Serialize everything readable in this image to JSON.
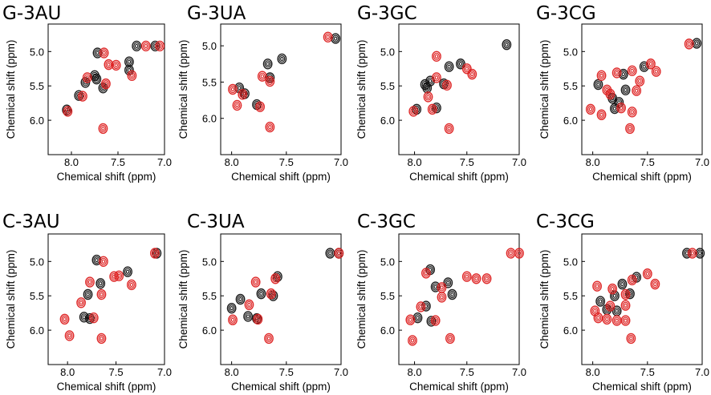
{
  "figure": {
    "row_titles": [
      "G-3AU",
      "G-3UA",
      "G-3GC",
      "G-3CG",
      "C-3AU",
      "C-3UA",
      "C-3GC",
      "C-3CG"
    ]
  },
  "chart_data": [
    {
      "type": "scatter",
      "title": "G-3AU",
      "xlabel": "Chemical shift (ppm)",
      "ylabel": "Chemical shift (ppm)",
      "xlim": [
        8.25,
        7.0
      ],
      "ylim": [
        4.6,
        6.5
      ],
      "xticks": [
        "8.0",
        "7.5",
        "7.0"
      ],
      "yticks": [
        "5.0",
        "5.5",
        "6.0"
      ],
      "series": [
        {
          "name": "black",
          "color": "#111111",
          "points": [
            [
              7.72,
              5.02
            ],
            [
              7.75,
              5.35
            ],
            [
              7.73,
              5.4
            ],
            [
              7.85,
              5.45
            ],
            [
              7.92,
              5.64
            ],
            [
              8.05,
              5.85
            ],
            [
              7.38,
              5.15
            ],
            [
              7.38,
              5.27
            ],
            [
              7.66,
              5.53
            ],
            [
              7.3,
              4.92
            ],
            [
              7.1,
              4.92
            ]
          ]
        },
        {
          "name": "red",
          "color": "#dd1f1f",
          "points": [
            [
              7.65,
              5.02
            ],
            [
              7.83,
              5.38
            ],
            [
              7.88,
              5.65
            ],
            [
              8.04,
              5.87
            ],
            [
              7.63,
              5.47
            ],
            [
              7.52,
              5.2
            ],
            [
              7.6,
              5.19
            ],
            [
              7.35,
              5.35
            ],
            [
              7.66,
              6.12
            ],
            [
              7.05,
              4.92
            ],
            [
              7.2,
              4.92
            ]
          ]
        }
      ]
    },
    {
      "type": "scatter",
      "title": "G-3UA",
      "xlabel": "Chemical shift (ppm)",
      "ylabel": "Chemical shift (ppm)",
      "xlim": [
        8.1,
        7.0
      ],
      "ylim": [
        4.7,
        6.5
      ],
      "xticks": [
        "8.0",
        "7.5",
        "7.0"
      ],
      "yticks": [
        "5.0",
        "5.5",
        "6.0"
      ],
      "series": [
        {
          "name": "black",
          "color": "#111111",
          "points": [
            [
              7.88,
              5.66
            ],
            [
              7.77,
              5.81
            ],
            [
              7.67,
              5.25
            ],
            [
              7.54,
              5.18
            ],
            [
              7.65,
              5.44
            ],
            [
              7.93,
              5.58
            ],
            [
              7.05,
              4.9
            ]
          ]
        },
        {
          "name": "red",
          "color": "#dd1f1f",
          "points": [
            [
              7.99,
              5.6
            ],
            [
              7.95,
              5.82
            ],
            [
              7.74,
              5.84
            ],
            [
              7.72,
              5.42
            ],
            [
              7.65,
              5.49
            ],
            [
              7.65,
              6.12
            ],
            [
              7.12,
              4.88
            ],
            [
              7.9,
              5.67
            ]
          ]
        }
      ]
    },
    {
      "type": "scatter",
      "title": "G-3GC",
      "xlabel": "Chemical shift (ppm)",
      "ylabel": "Chemical shift (ppm)",
      "xlim": [
        8.15,
        7.0
      ],
      "ylim": [
        4.6,
        6.5
      ],
      "xticks": [
        "8.0",
        "7.5",
        "7.0"
      ],
      "yticks": [
        "5.0",
        "5.5",
        "6.0"
      ],
      "series": [
        {
          "name": "black",
          "color": "#111111",
          "points": [
            [
              7.67,
              5.22
            ],
            [
              7.85,
              5.43
            ],
            [
              7.88,
              5.53
            ],
            [
              7.98,
              5.84
            ],
            [
              7.79,
              5.82
            ],
            [
              7.56,
              5.18
            ],
            [
              7.72,
              5.47
            ],
            [
              7.12,
              4.9
            ],
            [
              7.9,
              5.48
            ]
          ]
        },
        {
          "name": "red",
          "color": "#dd1f1f",
          "points": [
            [
              7.79,
              5.07
            ],
            [
              7.79,
              5.38
            ],
            [
              7.87,
              5.66
            ],
            [
              8.01,
              5.87
            ],
            [
              7.83,
              5.84
            ],
            [
              7.69,
              5.49
            ],
            [
              7.5,
              5.25
            ],
            [
              7.45,
              5.33
            ],
            [
              7.67,
              6.12
            ]
          ]
        }
      ]
    },
    {
      "type": "scatter",
      "title": "G-3CG",
      "xlabel": "Chemical shift (ppm)",
      "ylabel": "Chemical shift (ppm)",
      "xlim": [
        8.1,
        7.0
      ],
      "ylim": [
        4.6,
        6.5
      ],
      "xticks": [
        "8.0",
        "7.5",
        "7.0"
      ],
      "yticks": [
        "5.0",
        "5.5",
        "6.0"
      ],
      "series": [
        {
          "name": "black",
          "color": "#111111",
          "points": [
            [
              7.95,
              5.48
            ],
            [
              7.82,
              5.68
            ],
            [
              7.72,
              5.33
            ],
            [
              7.7,
              5.56
            ],
            [
              7.8,
              5.83
            ],
            [
              7.53,
              5.22
            ],
            [
              7.05,
              4.88
            ],
            [
              7.76,
              5.74
            ]
          ]
        },
        {
          "name": "red",
          "color": "#dd1f1f",
          "points": [
            [
              7.92,
              5.35
            ],
            [
              7.78,
              5.31
            ],
            [
              7.64,
              5.28
            ],
            [
              7.47,
              5.18
            ],
            [
              7.42,
              5.29
            ],
            [
              7.87,
              5.56
            ],
            [
              8.02,
              5.84
            ],
            [
              7.92,
              5.92
            ],
            [
              7.74,
              5.82
            ],
            [
              7.64,
              5.88
            ],
            [
              7.66,
              6.12
            ],
            [
              7.57,
              5.43
            ],
            [
              7.84,
              5.62
            ],
            [
              7.12,
              4.89
            ],
            [
              7.6,
              5.57
            ]
          ]
        }
      ]
    },
    {
      "type": "scatter",
      "title": "C-3AU",
      "xlabel": "Chemical shift (ppm)",
      "ylabel": "Chemical shift (ppm)",
      "xlim": [
        8.2,
        7.0
      ],
      "ylim": [
        4.6,
        6.5
      ],
      "xticks": [
        "8.0",
        "7.5",
        "7.0"
      ],
      "yticks": [
        "5.0",
        "5.5",
        "6.0"
      ],
      "series": [
        {
          "name": "black",
          "color": "#111111",
          "points": [
            [
              7.7,
              4.98
            ],
            [
              7.66,
              5.32
            ],
            [
              7.79,
              5.48
            ],
            [
              7.83,
              5.81
            ],
            [
              7.77,
              5.83
            ],
            [
              7.38,
              5.15
            ],
            [
              7.08,
              4.88
            ]
          ]
        },
        {
          "name": "red",
          "color": "#dd1f1f",
          "points": [
            [
              7.63,
              5.0
            ],
            [
              7.77,
              5.3
            ],
            [
              7.65,
              5.48
            ],
            [
              7.86,
              5.6
            ],
            [
              8.03,
              5.84
            ],
            [
              7.47,
              5.21
            ],
            [
              7.34,
              5.34
            ],
            [
              7.65,
              6.12
            ],
            [
              7.1,
              4.88
            ],
            [
              7.73,
              5.82
            ],
            [
              7.98,
              6.08
            ],
            [
              7.52,
              5.22
            ]
          ]
        }
      ]
    },
    {
      "type": "scatter",
      "title": "C-3UA",
      "xlabel": "Chemical shift (ppm)",
      "ylabel": "Chemical shift (ppm)",
      "xlim": [
        8.1,
        7.0
      ],
      "ylim": [
        4.6,
        6.5
      ],
      "xticks": [
        "8.0",
        "7.5",
        "7.0"
      ],
      "yticks": [
        "5.0",
        "5.5",
        "6.0"
      ],
      "series": [
        {
          "name": "black",
          "color": "#111111",
          "points": [
            [
              7.92,
              5.55
            ],
            [
              8.0,
              5.68
            ],
            [
              7.85,
              5.8
            ],
            [
              7.73,
              5.47
            ],
            [
              7.58,
              5.22
            ],
            [
              7.62,
              5.5
            ],
            [
              7.1,
              4.88
            ],
            [
              7.77,
              5.83
            ],
            [
              7.02,
              4.88
            ]
          ]
        },
        {
          "name": "red",
          "color": "#dd1f1f",
          "points": [
            [
              7.78,
              5.3
            ],
            [
              7.84,
              5.63
            ],
            [
              7.99,
              5.85
            ],
            [
              7.76,
              5.84
            ],
            [
              7.64,
              5.47
            ],
            [
              7.6,
              5.25
            ],
            [
              7.66,
              6.12
            ],
            [
              7.02,
              4.88
            ]
          ]
        }
      ]
    },
    {
      "type": "scatter",
      "title": "C-3GC",
      "xlabel": "Chemical shift (ppm)",
      "ylabel": "Chemical shift (ppm)",
      "xlim": [
        8.15,
        7.0
      ],
      "ylim": [
        4.6,
        6.5
      ],
      "xticks": [
        "8.0",
        "7.5",
        "7.0"
      ],
      "yticks": [
        "5.0",
        "5.5",
        "6.0"
      ],
      "series": [
        {
          "name": "black",
          "color": "#111111",
          "points": [
            [
              7.85,
              5.12
            ],
            [
              7.8,
              5.37
            ],
            [
              7.68,
              5.31
            ],
            [
              7.89,
              5.65
            ],
            [
              7.97,
              5.82
            ],
            [
              7.84,
              5.87
            ],
            [
              7.64,
              5.48
            ]
          ]
        },
        {
          "name": "red",
          "color": "#dd1f1f",
          "points": [
            [
              7.74,
              5.38
            ],
            [
              7.74,
              5.52
            ],
            [
              7.94,
              5.66
            ],
            [
              8.04,
              5.85
            ],
            [
              7.8,
              5.86
            ],
            [
              7.66,
              6.12
            ],
            [
              7.5,
              5.22
            ],
            [
              7.41,
              5.25
            ],
            [
              7.31,
              5.25
            ],
            [
              7.08,
              4.88
            ],
            [
              7.0,
              4.88
            ],
            [
              7.89,
              5.17
            ],
            [
              8.02,
              6.15
            ]
          ]
        }
      ]
    },
    {
      "type": "scatter",
      "title": "C-3CG",
      "xlabel": "Chemical shift (ppm)",
      "ylabel": "Chemical shift (ppm)",
      "xlim": [
        8.1,
        7.0
      ],
      "ylim": [
        4.6,
        6.5
      ],
      "xticks": [
        "8.0",
        "7.5",
        "7.0"
      ],
      "yticks": [
        "5.0",
        "5.5",
        "6.0"
      ],
      "series": [
        {
          "name": "black",
          "color": "#111111",
          "points": [
            [
              7.93,
              5.58
            ],
            [
              7.8,
              5.5
            ],
            [
              7.73,
              5.33
            ],
            [
              7.6,
              5.23
            ],
            [
              7.66,
              5.47
            ],
            [
              7.87,
              5.7
            ],
            [
              7.78,
              5.72
            ],
            [
              7.14,
              4.88
            ],
            [
              7.02,
              4.88
            ]
          ]
        },
        {
          "name": "red",
          "color": "#dd1f1f",
          "points": [
            [
              7.96,
              5.36
            ],
            [
              7.82,
              5.4
            ],
            [
              7.7,
              5.48
            ],
            [
              7.64,
              5.27
            ],
            [
              7.5,
              5.18
            ],
            [
              7.43,
              5.33
            ],
            [
              7.84,
              5.65
            ],
            [
              7.95,
              5.82
            ],
            [
              7.87,
              5.84
            ],
            [
              7.78,
              5.86
            ],
            [
              7.7,
              5.86
            ],
            [
              7.65,
              6.12
            ],
            [
              7.09,
              4.88
            ],
            [
              7.98,
              5.72
            ],
            [
              7.7,
              5.64
            ]
          ]
        }
      ]
    }
  ]
}
